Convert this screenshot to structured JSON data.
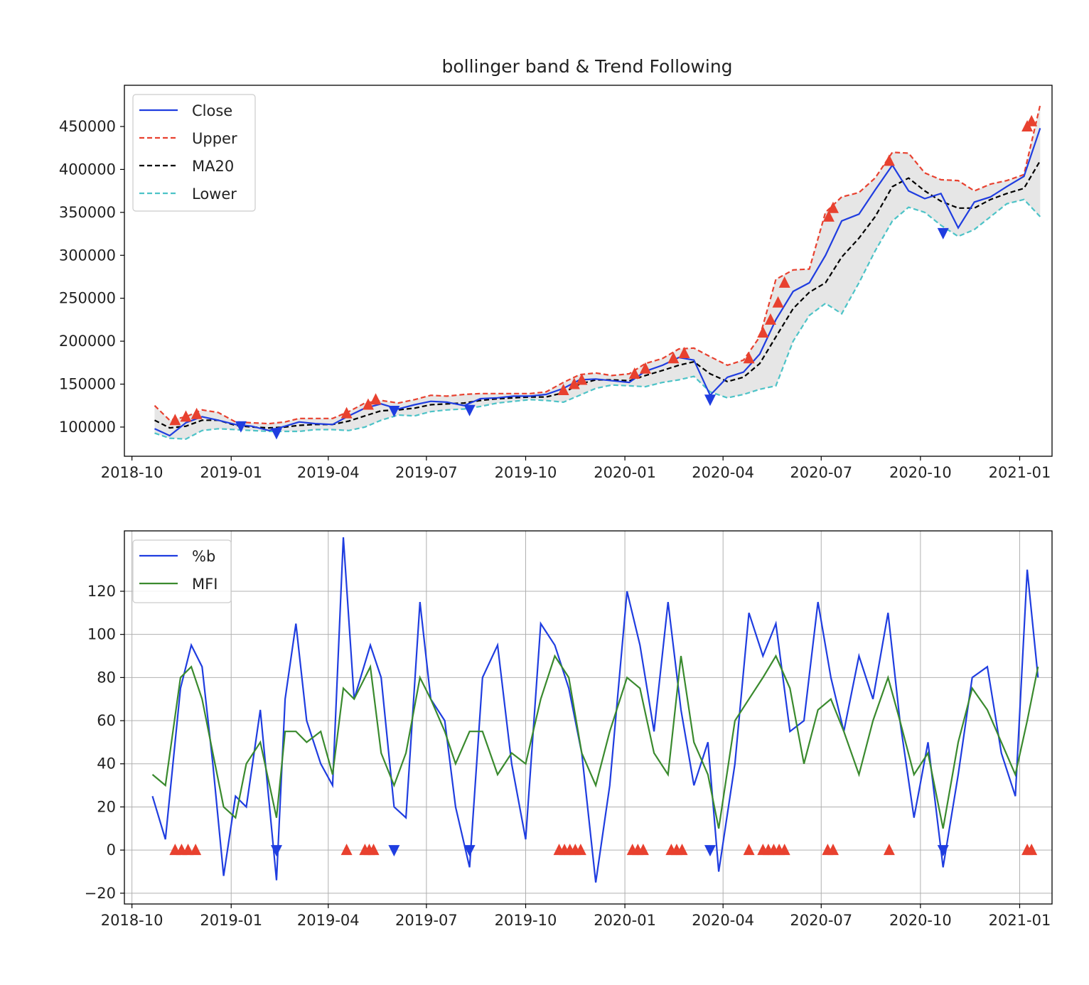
{
  "chart_data": [
    {
      "type": "line",
      "title": "bollinger band & Trend Following",
      "xlabel": "",
      "ylabel": "",
      "x_ticks": [
        "2018-10",
        "2019-01",
        "2019-04",
        "2019-07",
        "2019-10",
        "2020-01",
        "2020-04",
        "2020-07",
        "2020-10",
        "2021-01"
      ],
      "y_ticks": [
        "100000",
        "150000",
        "200000",
        "250000",
        "300000",
        "350000",
        "400000",
        "450000"
      ],
      "xlim": [
        "2018-09-24",
        "2021-01-31"
      ],
      "ylim": [
        66000,
        498000
      ],
      "grid": false,
      "legend_position": "upper-left",
      "fill_between": {
        "upper": "Upper",
        "lower": "Lower",
        "color": "#e6e6e6"
      },
      "x": [
        "2018-10-22",
        "2018-11-05",
        "2018-11-20",
        "2018-12-05",
        "2018-12-20",
        "2019-01-05",
        "2019-01-20",
        "2019-02-05",
        "2019-02-20",
        "2019-03-05",
        "2019-03-20",
        "2019-04-05",
        "2019-04-20",
        "2019-05-05",
        "2019-05-20",
        "2019-06-05",
        "2019-06-20",
        "2019-07-05",
        "2019-07-20",
        "2019-08-05",
        "2019-08-20",
        "2019-09-05",
        "2019-09-20",
        "2019-10-05",
        "2019-10-20",
        "2019-11-05",
        "2019-11-20",
        "2019-12-05",
        "2019-12-20",
        "2020-01-05",
        "2020-01-20",
        "2020-02-05",
        "2020-02-20",
        "2020-03-05",
        "2020-03-20",
        "2020-04-05",
        "2020-04-20",
        "2020-05-05",
        "2020-05-20",
        "2020-06-05",
        "2020-06-20",
        "2020-07-05",
        "2020-07-20",
        "2020-08-05",
        "2020-08-20",
        "2020-09-05",
        "2020-09-20",
        "2020-10-05",
        "2020-10-20",
        "2020-11-05",
        "2020-11-20",
        "2020-12-05",
        "2020-12-20",
        "2021-01-05",
        "2021-01-20"
      ],
      "series": [
        {
          "name": "Close",
          "color": "#1f3de0",
          "style": "solid",
          "values": [
            98000,
            90000,
            105000,
            112000,
            108000,
            103000,
            101000,
            96000,
            101000,
            106000,
            104000,
            103000,
            113000,
            122000,
            127000,
            121000,
            126000,
            130000,
            129000,
            125000,
            133000,
            134000,
            136000,
            136000,
            138000,
            145000,
            155000,
            156000,
            154000,
            152000,
            165000,
            172000,
            181000,
            178000,
            137000,
            158000,
            164000,
            185000,
            225000,
            258000,
            268000,
            300000,
            340000,
            348000,
            376000,
            405000,
            375000,
            366000,
            372000,
            332000,
            362000,
            368000,
            380000,
            392000,
            448000
          ]
        },
        {
          "name": "Upper",
          "color": "#e8412f",
          "style": "dashed",
          "values": [
            125000,
            108000,
            112000,
            120000,
            117000,
            106000,
            105000,
            104000,
            106000,
            110000,
            110000,
            110000,
            118000,
            128000,
            131000,
            128000,
            132000,
            137000,
            136000,
            138000,
            139000,
            139000,
            139000,
            139000,
            141000,
            152000,
            161000,
            163000,
            160000,
            162000,
            174000,
            180000,
            191000,
            192000,
            182000,
            172000,
            178000,
            205000,
            272000,
            283000,
            284000,
            350000,
            368000,
            373000,
            390000,
            420000,
            419000,
            396000,
            388000,
            387000,
            375000,
            383000,
            387000,
            394000,
            475000
          ]
        },
        {
          "name": "MA20",
          "color": "#000000",
          "style": "dashed",
          "values": [
            108000,
            99000,
            101000,
            108000,
            108000,
            102000,
            100000,
            99000,
            100000,
            102000,
            103000,
            103000,
            107000,
            113000,
            119000,
            120000,
            122000,
            126000,
            127000,
            128000,
            131000,
            133000,
            134000,
            135000,
            135000,
            140000,
            150000,
            155000,
            155000,
            154000,
            160000,
            166000,
            172000,
            176000,
            162000,
            153000,
            158000,
            174000,
            205000,
            238000,
            257000,
            268000,
            298000,
            320000,
            345000,
            380000,
            390000,
            375000,
            363000,
            355000,
            355000,
            365000,
            372000,
            378000,
            410000
          ]
        },
        {
          "name": "Lower",
          "color": "#4dc3c7",
          "style": "dashed",
          "values": [
            93000,
            87000,
            86000,
            96000,
            98000,
            97000,
            96000,
            95000,
            95000,
            95000,
            97000,
            97000,
            96000,
            100000,
            108000,
            114000,
            113000,
            118000,
            120000,
            121000,
            124000,
            128000,
            130000,
            132000,
            131000,
            129000,
            137000,
            145000,
            149000,
            148000,
            147000,
            152000,
            155000,
            159000,
            141000,
            134000,
            138000,
            144000,
            148000,
            200000,
            230000,
            244000,
            232000,
            268000,
            305000,
            340000,
            356000,
            350000,
            335000,
            322000,
            330000,
            345000,
            360000,
            365000,
            345000
          ]
        }
      ],
      "markers": {
        "buy": {
          "symbol": "triangle-up",
          "color": "#e8412f",
          "x": [
            "2018-11-10",
            "2018-11-20",
            "2018-11-30",
            "2019-04-18",
            "2019-05-08",
            "2019-05-15",
            "2019-11-05",
            "2019-11-15",
            "2019-11-22",
            "2020-01-10",
            "2020-01-20",
            "2020-02-15",
            "2020-02-25",
            "2020-04-25",
            "2020-05-08",
            "2020-05-15",
            "2020-05-22",
            "2020-05-28",
            "2020-07-08",
            "2020-07-12",
            "2020-09-02",
            "2021-01-08",
            "2021-01-12"
          ],
          "y": [
            108000,
            112000,
            115000,
            116000,
            126000,
            132000,
            143000,
            150000,
            155000,
            162000,
            168000,
            180000,
            186000,
            180000,
            210000,
            225000,
            245000,
            268000,
            345000,
            355000,
            410000,
            450000,
            456000
          ]
        },
        "sell": {
          "symbol": "triangle-down",
          "color": "#1f3de0",
          "x": [
            "2019-01-10",
            "2019-02-12",
            "2019-06-01",
            "2019-08-10",
            "2020-03-20",
            "2020-10-22"
          ],
          "y": [
            101000,
            93000,
            119000,
            120000,
            132000,
            326000
          ]
        }
      }
    },
    {
      "type": "line",
      "title": "",
      "xlabel": "",
      "ylabel": "",
      "x_ticks": [
        "2018-10",
        "2019-01",
        "2019-04",
        "2019-07",
        "2019-10",
        "2020-01",
        "2020-04",
        "2020-07",
        "2020-10",
        "2021-01"
      ],
      "y_ticks": [
        "−20",
        "0",
        "20",
        "40",
        "60",
        "80",
        "100",
        "120"
      ],
      "xlim": [
        "2018-09-24",
        "2021-01-31"
      ],
      "ylim": [
        -25,
        148
      ],
      "grid": true,
      "legend_position": "upper-left",
      "x": [
        "2018-10-20",
        "2018-11-01",
        "2018-11-15",
        "2018-11-25",
        "2018-12-05",
        "2018-12-15",
        "2018-12-25",
        "2019-01-05",
        "2019-01-15",
        "2019-01-28",
        "2019-02-12",
        "2019-02-20",
        "2019-03-02",
        "2019-03-12",
        "2019-03-25",
        "2019-04-05",
        "2019-04-15",
        "2019-04-25",
        "2019-05-10",
        "2019-05-20",
        "2019-06-01",
        "2019-06-12",
        "2019-06-25",
        "2019-07-05",
        "2019-07-18",
        "2019-07-28",
        "2019-08-10",
        "2019-08-22",
        "2019-09-05",
        "2019-09-18",
        "2019-10-01",
        "2019-10-15",
        "2019-10-28",
        "2019-11-10",
        "2019-11-22",
        "2019-12-05",
        "2019-12-18",
        "2020-01-03",
        "2020-01-15",
        "2020-01-28",
        "2020-02-10",
        "2020-02-22",
        "2020-03-05",
        "2020-03-18",
        "2020-03-28",
        "2020-04-12",
        "2020-04-25",
        "2020-05-08",
        "2020-05-20",
        "2020-06-02",
        "2020-06-15",
        "2020-06-28",
        "2020-07-10",
        "2020-07-22",
        "2020-08-05",
        "2020-08-18",
        "2020-09-01",
        "2020-09-12",
        "2020-09-25",
        "2020-10-08",
        "2020-10-22",
        "2020-11-05",
        "2020-11-18",
        "2020-12-02",
        "2020-12-15",
        "2020-12-28",
        "2021-01-08",
        "2021-01-18"
      ],
      "series": [
        {
          "name": "%b",
          "color": "#1f3de0",
          "style": "solid",
          "values": [
            25,
            5,
            75,
            95,
            85,
            40,
            -12,
            25,
            20,
            65,
            -14,
            70,
            105,
            60,
            40,
            30,
            145,
            70,
            95,
            80,
            20,
            15,
            115,
            70,
            60,
            20,
            -8,
            80,
            95,
            40,
            5,
            105,
            95,
            75,
            45,
            -15,
            30,
            120,
            95,
            55,
            115,
            65,
            30,
            50,
            -10,
            40,
            110,
            90,
            105,
            55,
            60,
            115,
            80,
            55,
            90,
            70,
            110,
            60,
            15,
            50,
            -8,
            35,
            80,
            85,
            45,
            25,
            130,
            80
          ]
        },
        {
          "name": "MFI",
          "color": "#3a8a2e",
          "style": "solid",
          "values": [
            35,
            30,
            80,
            85,
            70,
            45,
            20,
            15,
            40,
            50,
            15,
            55,
            55,
            50,
            55,
            35,
            75,
            70,
            85,
            45,
            30,
            45,
            80,
            70,
            55,
            40,
            55,
            55,
            35,
            45,
            40,
            70,
            90,
            80,
            45,
            30,
            55,
            80,
            75,
            45,
            35,
            90,
            50,
            35,
            10,
            60,
            70,
            80,
            90,
            75,
            40,
            65,
            70,
            55,
            35,
            60,
            80,
            60,
            35,
            45,
            10,
            50,
            75,
            65,
            50,
            35,
            60,
            85
          ]
        }
      ],
      "markers": {
        "buy": {
          "symbol": "triangle-up",
          "color": "#e8412f",
          "x": [
            "2018-11-10",
            "2018-11-16",
            "2018-11-22",
            "2018-11-29",
            "2019-04-18",
            "2019-05-05",
            "2019-05-09",
            "2019-05-13",
            "2019-11-01",
            "2019-11-06",
            "2019-11-11",
            "2019-11-16",
            "2019-11-21",
            "2020-01-08",
            "2020-01-13",
            "2020-01-18",
            "2020-02-13",
            "2020-02-18",
            "2020-02-23",
            "2020-04-25",
            "2020-05-08",
            "2020-05-13",
            "2020-05-18",
            "2020-05-23",
            "2020-05-28",
            "2020-07-07",
            "2020-07-12",
            "2020-09-02",
            "2021-01-08",
            "2021-01-12"
          ],
          "y": [
            0,
            0,
            0,
            0,
            0,
            0,
            0,
            0,
            0,
            0,
            0,
            0,
            0,
            0,
            0,
            0,
            0,
            0,
            0,
            0,
            0,
            0,
            0,
            0,
            0,
            0,
            0,
            0,
            0,
            0
          ]
        },
        "sell": {
          "symbol": "triangle-down",
          "color": "#1f3de0",
          "x": [
            "2019-02-12",
            "2019-06-01",
            "2019-08-10",
            "2020-03-20",
            "2020-10-22"
          ],
          "y": [
            0,
            0,
            0,
            0,
            0
          ]
        }
      }
    }
  ]
}
